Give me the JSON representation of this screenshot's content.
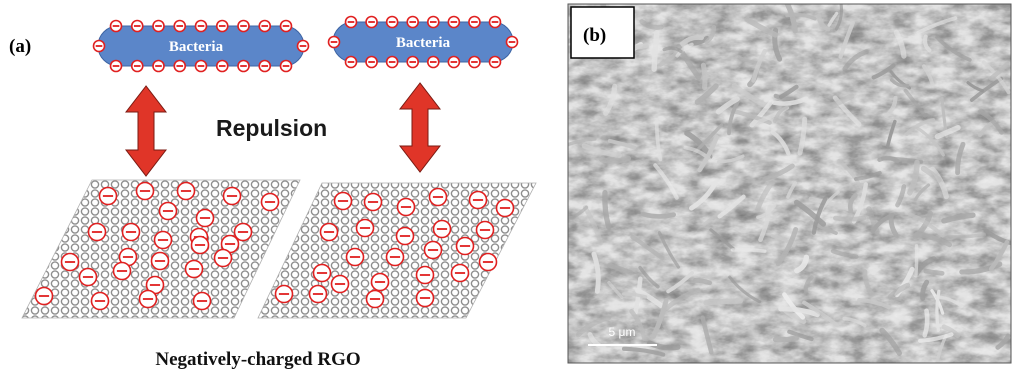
{
  "panel_a": {
    "label": "(a)",
    "bacteria": [
      {
        "label": "Bacteria",
        "charge": "⊖"
      },
      {
        "label": "Bacteria",
        "charge": "⊖"
      }
    ],
    "interaction_label": "Repulsion",
    "caption": "Negatively-charged RGO",
    "colors": {
      "bacteria_fill": "#5b86c9",
      "charge_ring": "#e02020",
      "arrow": "#e03528",
      "lattice": "#9a9a9a"
    }
  },
  "panel_b": {
    "label": "(b)",
    "scale_bar": "5 μm",
    "image": "SEM micrograph of bacteria on reduced graphene oxide"
  }
}
